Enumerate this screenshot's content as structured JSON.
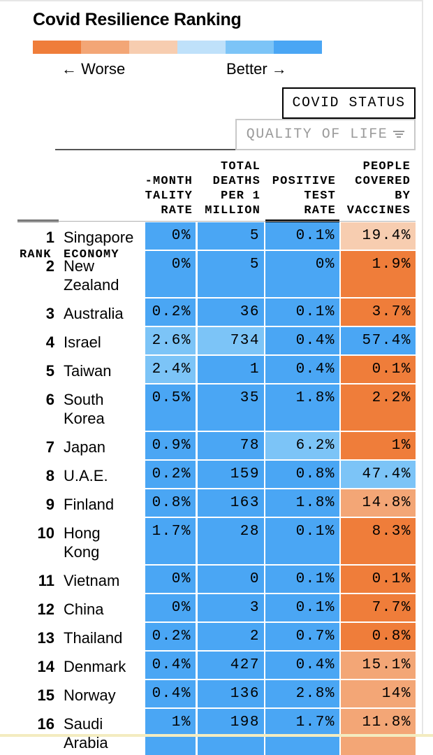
{
  "title": "Covid Resilience Ranking",
  "scale_colors": [
    "#ef7d3a",
    "#f3a676",
    "#f7cdb0",
    "#bfe1fa",
    "#7cc4f7",
    "#4aa6f4"
  ],
  "direction": {
    "worse": "← Worse",
    "better": "Better →"
  },
  "tabs": {
    "covid_status": "COVID STATUS",
    "quality_of_life": "QUALITY OF LIFE"
  },
  "icons": {
    "quality_of_life_tab": "filter-icon"
  },
  "chart_data": {
    "type": "table",
    "title": "Covid Resilience Ranking",
    "columns": [
      {
        "key": "rank",
        "label": [
          "",
          "",
          "",
          "RANK"
        ]
      },
      {
        "key": "economy",
        "label": [
          "",
          "",
          "",
          "ECONOMY"
        ]
      },
      {
        "key": "mortality",
        "label": [
          "-MONTH",
          "TALITY",
          "RATE"
        ]
      },
      {
        "key": "deaths",
        "label": [
          "TOTAL",
          "DEATHS",
          "PER 1",
          "MILLION"
        ]
      },
      {
        "key": "positive",
        "label": [
          "POSITIVE",
          "TEST",
          "RATE"
        ]
      },
      {
        "key": "vaccines",
        "label": [
          "PEOPLE",
          "COVERED",
          "BY",
          "VACCINES"
        ]
      }
    ],
    "colors": {
      "dark_orange": "#ef7d3a",
      "mid_orange": "#f3a676",
      "light_orange": "#f7cdb0",
      "pale_blue": "#bfe1fa",
      "light_blue": "#7cc4f7",
      "blue": "#4aa6f4"
    },
    "rows": [
      {
        "rank": "1",
        "economy": [
          "Singapore"
        ],
        "mortality": "0%",
        "deaths": "5",
        "positive": "0.1%",
        "vaccines": "19.4%",
        "colors": [
          "blue",
          "blue",
          "blue",
          "light_orange"
        ]
      },
      {
        "rank": "2",
        "economy": [
          "New",
          "Zealand"
        ],
        "mortality": "0%",
        "deaths": "5",
        "positive": "0%",
        "vaccines": "1.9%",
        "colors": [
          "blue",
          "blue",
          "blue",
          "dark_orange"
        ]
      },
      {
        "rank": "3",
        "economy": [
          "Australia"
        ],
        "mortality": "0.2%",
        "deaths": "36",
        "positive": "0.1%",
        "vaccines": "3.7%",
        "colors": [
          "blue",
          "blue",
          "blue",
          "dark_orange"
        ]
      },
      {
        "rank": "4",
        "economy": [
          "Israel"
        ],
        "mortality": "2.6%",
        "deaths": "734",
        "positive": "0.4%",
        "vaccines": "57.4%",
        "colors": [
          "light_blue",
          "light_blue",
          "blue",
          "blue"
        ]
      },
      {
        "rank": "5",
        "economy": [
          "Taiwan"
        ],
        "mortality": "2.4%",
        "deaths": "1",
        "positive": "0.4%",
        "vaccines": "0.1%",
        "colors": [
          "light_blue",
          "blue",
          "blue",
          "dark_orange"
        ]
      },
      {
        "rank": "6",
        "economy": [
          "South",
          "Korea"
        ],
        "mortality": "0.5%",
        "deaths": "35",
        "positive": "1.8%",
        "vaccines": "2.2%",
        "colors": [
          "blue",
          "blue",
          "blue",
          "dark_orange"
        ]
      },
      {
        "rank": "7",
        "economy": [
          "Japan"
        ],
        "mortality": "0.9%",
        "deaths": "78",
        "positive": "6.2%",
        "vaccines": "1%",
        "colors": [
          "blue",
          "blue",
          "light_blue",
          "dark_orange"
        ]
      },
      {
        "rank": "8",
        "economy": [
          "U.A.E."
        ],
        "mortality": "0.2%",
        "deaths": "159",
        "positive": "0.8%",
        "vaccines": "47.4%",
        "colors": [
          "blue",
          "blue",
          "blue",
          "light_blue"
        ]
      },
      {
        "rank": "9",
        "economy": [
          "Finland"
        ],
        "mortality": "0.8%",
        "deaths": "163",
        "positive": "1.8%",
        "vaccines": "14.8%",
        "colors": [
          "blue",
          "blue",
          "blue",
          "mid_orange"
        ]
      },
      {
        "rank": "10",
        "economy": [
          "Hong",
          "Kong"
        ],
        "mortality": "1.7%",
        "deaths": "28",
        "positive": "0.1%",
        "vaccines": "8.3%",
        "colors": [
          "blue",
          "blue",
          "blue",
          "dark_orange"
        ]
      },
      {
        "rank": "11",
        "economy": [
          "Vietnam"
        ],
        "mortality": "0%",
        "deaths": "0",
        "positive": "0.1%",
        "vaccines": "0.1%",
        "colors": [
          "blue",
          "blue",
          "blue",
          "dark_orange"
        ]
      },
      {
        "rank": "12",
        "economy": [
          "China"
        ],
        "mortality": "0%",
        "deaths": "3",
        "positive": "0.1%",
        "vaccines": "7.7%",
        "colors": [
          "blue",
          "blue",
          "blue",
          "dark_orange"
        ]
      },
      {
        "rank": "13",
        "economy": [
          "Thailand"
        ],
        "mortality": "0.2%",
        "deaths": "2",
        "positive": "0.7%",
        "vaccines": "0.8%",
        "colors": [
          "blue",
          "blue",
          "blue",
          "dark_orange"
        ]
      },
      {
        "rank": "14",
        "economy": [
          "Denmark"
        ],
        "mortality": "0.4%",
        "deaths": "427",
        "positive": "0.4%",
        "vaccines": "15.1%",
        "colors": [
          "blue",
          "blue",
          "blue",
          "mid_orange"
        ]
      },
      {
        "rank": "15",
        "economy": [
          "Norway"
        ],
        "mortality": "0.4%",
        "deaths": "136",
        "positive": "2.8%",
        "vaccines": "14%",
        "colors": [
          "blue",
          "blue",
          "blue",
          "mid_orange"
        ]
      },
      {
        "rank": "16",
        "economy": [
          "Saudi",
          "Arabia"
        ],
        "mortality": "1%",
        "deaths": "198",
        "positive": "1.7%",
        "vaccines": "11.8%",
        "colors": [
          "blue",
          "blue",
          "blue",
          "mid_orange"
        ]
      }
    ]
  }
}
